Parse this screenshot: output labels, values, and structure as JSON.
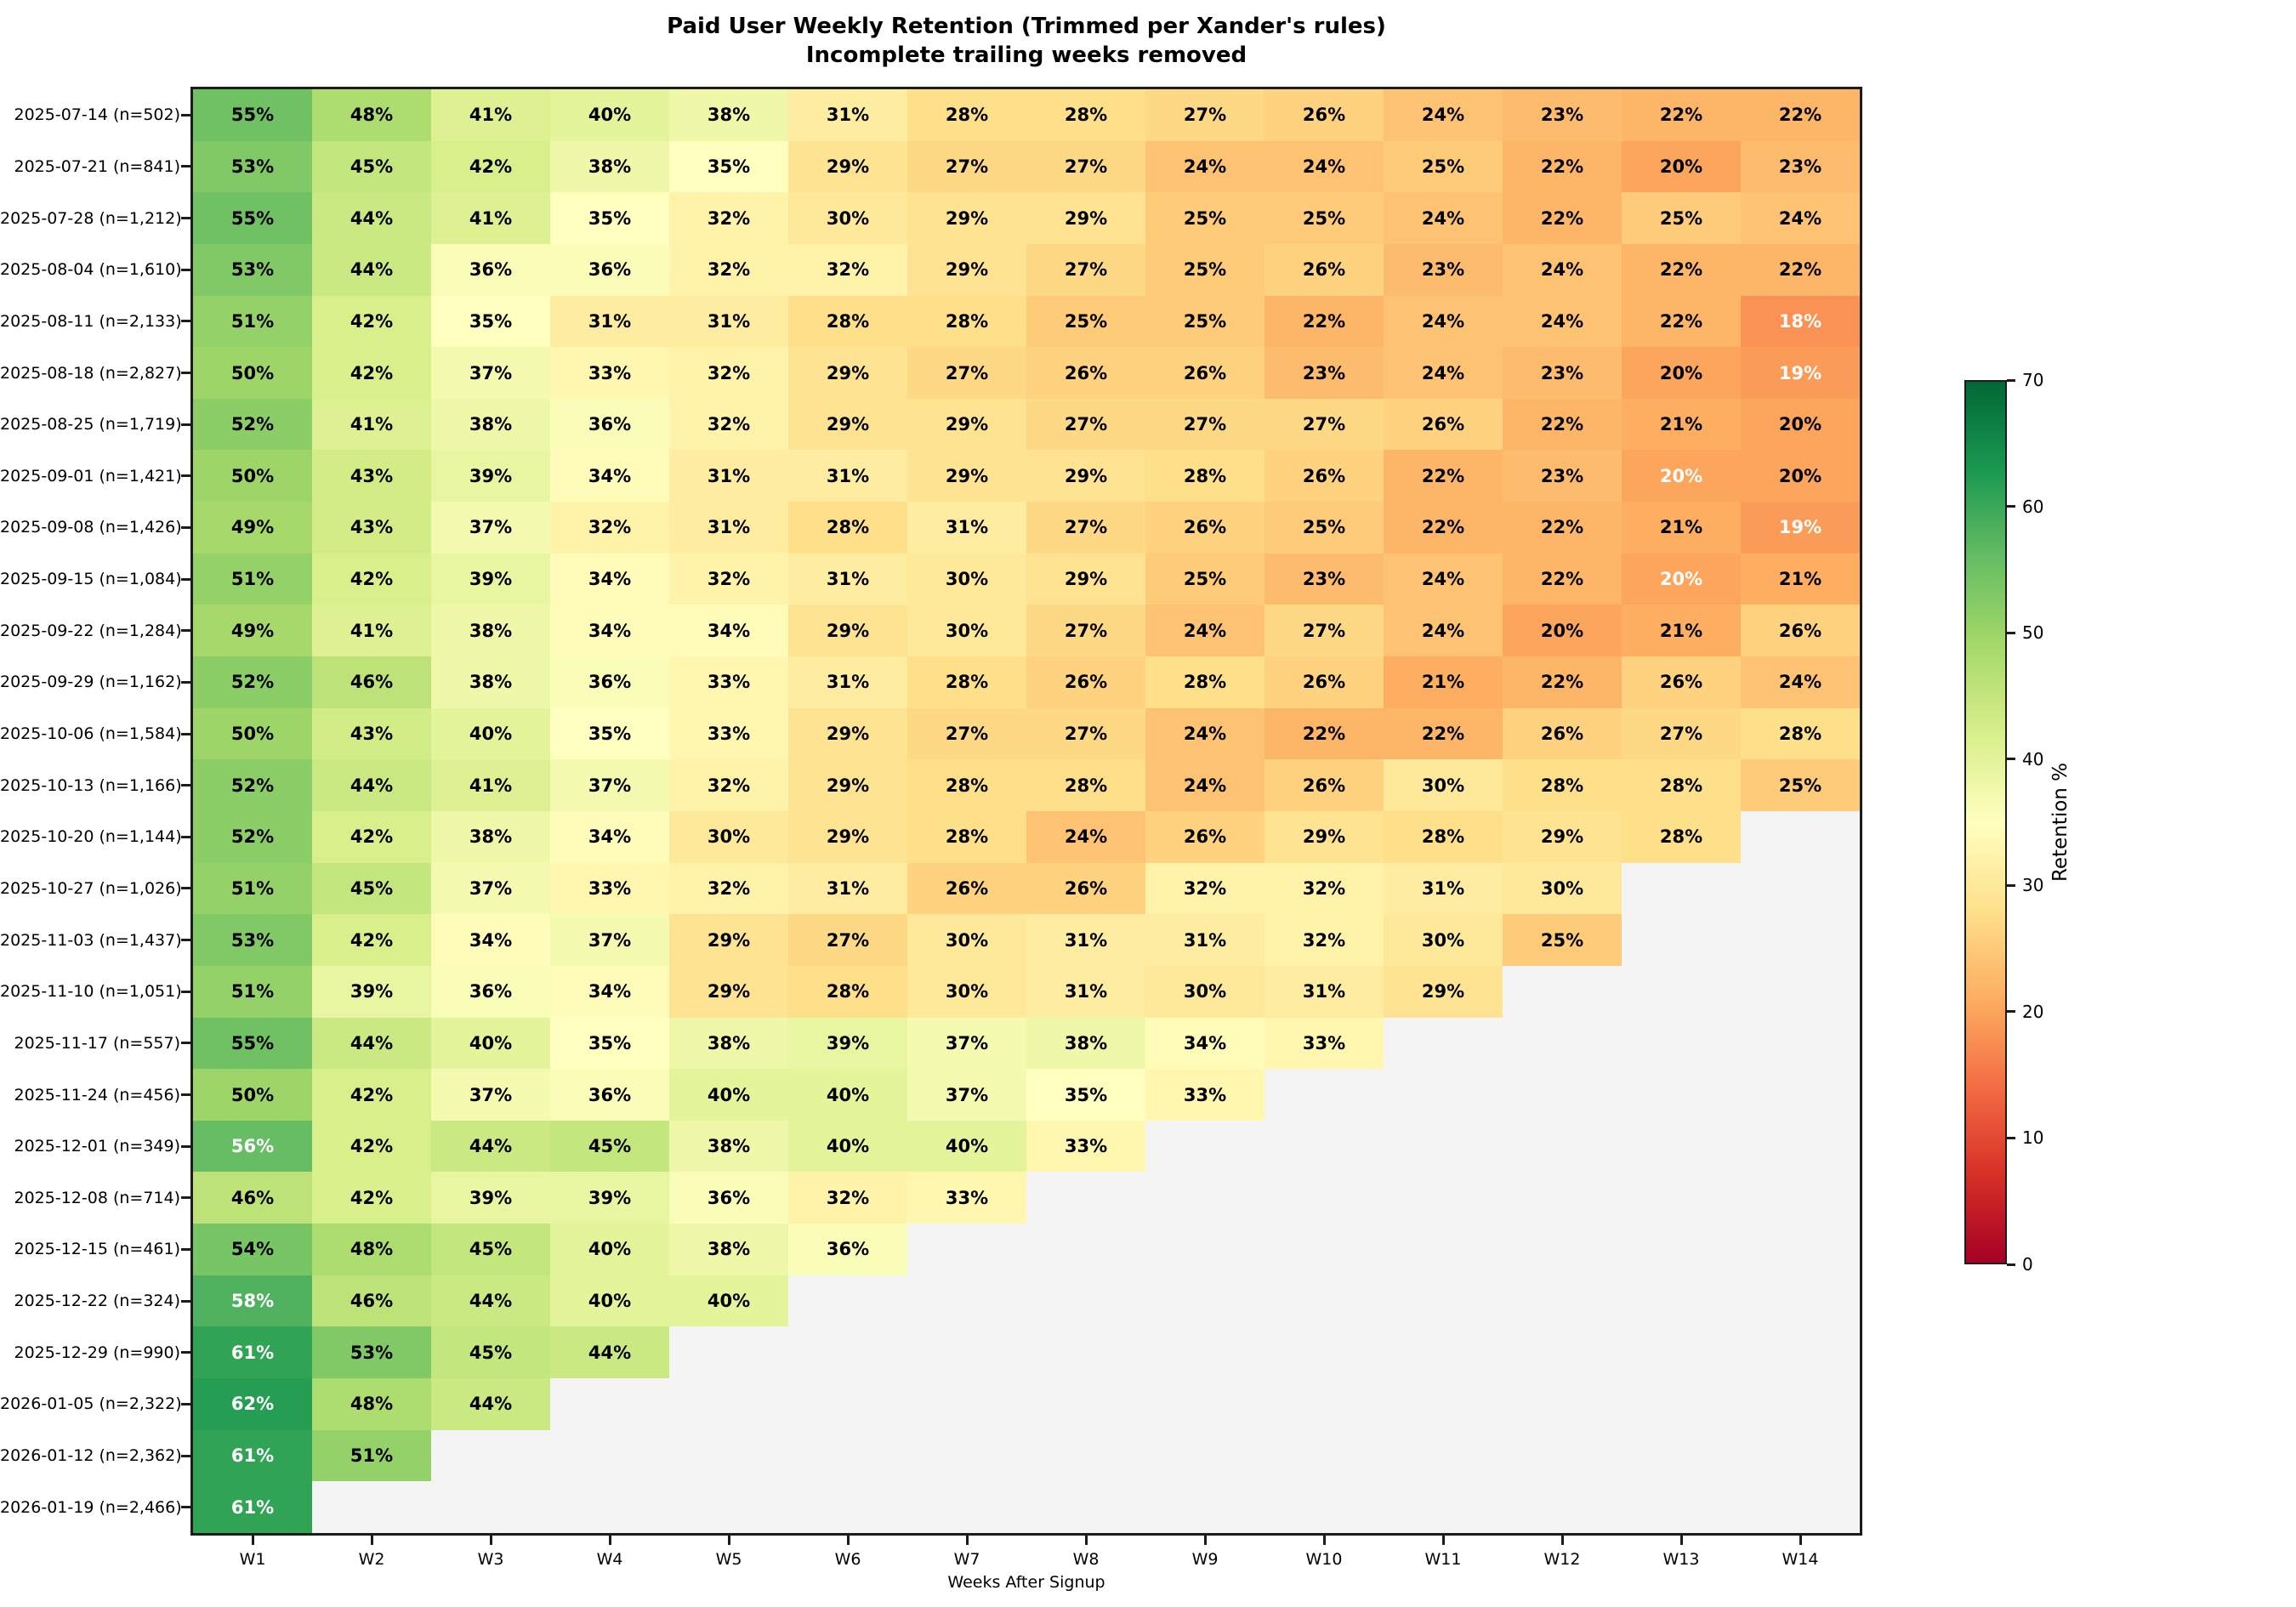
{
  "title": {
    "line1": "Paid User Weekly Retention (Trimmed per Xander's rules)",
    "line2": "Incomplete trailing weeks removed"
  },
  "chart_data": {
    "type": "heatmap",
    "title": "Paid User Weekly Retention (Trimmed per Xander's rules)",
    "subtitle": "Incomplete trailing weeks removed",
    "xlabel": "Weeks After Signup",
    "colorbar_label": "Retention %",
    "colormap": "RdYlGn",
    "vmin": 0,
    "vmax": 70,
    "colorbar_ticks": [
      0,
      10,
      20,
      30,
      40,
      50,
      60,
      70
    ],
    "legend_position": "right",
    "grid": false,
    "missing_color": "#f4f4f4",
    "colormap_stops": [
      "#a50026",
      "#d73027",
      "#f46d43",
      "#fdae61",
      "#fee08b",
      "#ffffbf",
      "#d9ef8b",
      "#a6d96a",
      "#66bd63",
      "#1a9850",
      "#006837"
    ],
    "x_labels": [
      "W1",
      "W2",
      "W3",
      "W4",
      "W5",
      "W6",
      "W7",
      "W8",
      "W9",
      "W10",
      "W11",
      "W12",
      "W13",
      "W14"
    ],
    "y_labels": [
      "2025-07-14 (n=502)",
      "2025-07-21 (n=841)",
      "2025-07-28 (n=1,212)",
      "2025-08-04 (n=1,610)",
      "2025-08-11 (n=2,133)",
      "2025-08-18 (n=2,827)",
      "2025-08-25 (n=1,719)",
      "2025-09-01 (n=1,421)",
      "2025-09-08 (n=1,426)",
      "2025-09-15 (n=1,084)",
      "2025-09-22 (n=1,284)",
      "2025-09-29 (n=1,162)",
      "2025-10-06 (n=1,584)",
      "2025-10-13 (n=1,166)",
      "2025-10-20 (n=1,144)",
      "2025-10-27 (n=1,026)",
      "2025-11-03 (n=1,437)",
      "2025-11-10 (n=1,051)",
      "2025-11-17 (n=557)",
      "2025-11-24 (n=456)",
      "2025-12-01 (n=349)",
      "2025-12-08 (n=714)",
      "2025-12-15 (n=461)",
      "2025-12-22 (n=324)",
      "2025-12-29 (n=990)",
      "2026-01-05 (n=2,322)",
      "2026-01-12 (n=2,362)",
      "2026-01-19 (n=2,466)"
    ],
    "values": [
      [
        55,
        48,
        41,
        40,
        38,
        31,
        28,
        28,
        27,
        26,
        24,
        23,
        22,
        22
      ],
      [
        53,
        45,
        42,
        38,
        35,
        29,
        27,
        27,
        24,
        24,
        25,
        22,
        20,
        23
      ],
      [
        55,
        44,
        41,
        35,
        32,
        30,
        29,
        29,
        25,
        25,
        24,
        22,
        25,
        24
      ],
      [
        53,
        44,
        36,
        36,
        32,
        32,
        29,
        27,
        25,
        26,
        23,
        24,
        22,
        22
      ],
      [
        51,
        42,
        35,
        31,
        31,
        28,
        28,
        25,
        25,
        22,
        24,
        24,
        22,
        18
      ],
      [
        50,
        42,
        37,
        33,
        32,
        29,
        27,
        26,
        26,
        23,
        24,
        23,
        20,
        19
      ],
      [
        52,
        41,
        38,
        36,
        32,
        29,
        29,
        27,
        27,
        27,
        26,
        22,
        21,
        20
      ],
      [
        50,
        43,
        39,
        34,
        31,
        31,
        29,
        29,
        28,
        26,
        22,
        23,
        20,
        20
      ],
      [
        49,
        43,
        37,
        32,
        31,
        28,
        31,
        27,
        26,
        25,
        22,
        22,
        21,
        19
      ],
      [
        51,
        42,
        39,
        34,
        32,
        31,
        30,
        29,
        25,
        23,
        24,
        22,
        20,
        21
      ],
      [
        49,
        41,
        38,
        34,
        34,
        29,
        30,
        27,
        24,
        27,
        24,
        20,
        21,
        26
      ],
      [
        52,
        46,
        38,
        36,
        33,
        31,
        28,
        26,
        28,
        26,
        21,
        22,
        26,
        24
      ],
      [
        50,
        43,
        40,
        35,
        33,
        29,
        27,
        27,
        24,
        22,
        22,
        26,
        27,
        28
      ],
      [
        52,
        44,
        41,
        37,
        32,
        29,
        28,
        28,
        24,
        26,
        30,
        28,
        28,
        25
      ],
      [
        52,
        42,
        38,
        34,
        30,
        29,
        28,
        24,
        26,
        29,
        28,
        29,
        28,
        null
      ],
      [
        51,
        45,
        37,
        33,
        32,
        31,
        26,
        26,
        32,
        32,
        31,
        30,
        null,
        null
      ],
      [
        53,
        42,
        34,
        37,
        29,
        27,
        30,
        31,
        31,
        32,
        30,
        25,
        null,
        null
      ],
      [
        51,
        39,
        36,
        34,
        29,
        28,
        30,
        31,
        30,
        31,
        29,
        null,
        null,
        null
      ],
      [
        55,
        44,
        40,
        35,
        38,
        39,
        37,
        38,
        34,
        33,
        null,
        null,
        null,
        null
      ],
      [
        50,
        42,
        37,
        36,
        40,
        40,
        37,
        35,
        33,
        null,
        null,
        null,
        null,
        null
      ],
      [
        56,
        42,
        44,
        45,
        38,
        40,
        40,
        33,
        null,
        null,
        null,
        null,
        null,
        null
      ],
      [
        46,
        42,
        39,
        39,
        36,
        32,
        33,
        null,
        null,
        null,
        null,
        null,
        null,
        null
      ],
      [
        54,
        48,
        45,
        40,
        38,
        36,
        null,
        null,
        null,
        null,
        null,
        null,
        null,
        null
      ],
      [
        58,
        46,
        44,
        40,
        40,
        null,
        null,
        null,
        null,
        null,
        null,
        null,
        null,
        null
      ],
      [
        61,
        53,
        45,
        44,
        null,
        null,
        null,
        null,
        null,
        null,
        null,
        null,
        null,
        null
      ],
      [
        62,
        48,
        44,
        null,
        null,
        null,
        null,
        null,
        null,
        null,
        null,
        null,
        null,
        null
      ],
      [
        61,
        51,
        null,
        null,
        null,
        null,
        null,
        null,
        null,
        null,
        null,
        null,
        null,
        null
      ],
      [
        61,
        null,
        null,
        null,
        null,
        null,
        null,
        null,
        null,
        null,
        null,
        null,
        null,
        null
      ]
    ],
    "value_suffix": "%",
    "white_text_cells": [
      [
        4,
        13
      ],
      [
        5,
        13
      ],
      [
        7,
        12
      ],
      [
        8,
        13
      ],
      [
        9,
        12
      ],
      [
        20,
        0
      ],
      [
        23,
        0
      ],
      [
        24,
        0
      ],
      [
        25,
        0
      ],
      [
        26,
        0
      ],
      [
        27,
        0
      ]
    ]
  }
}
